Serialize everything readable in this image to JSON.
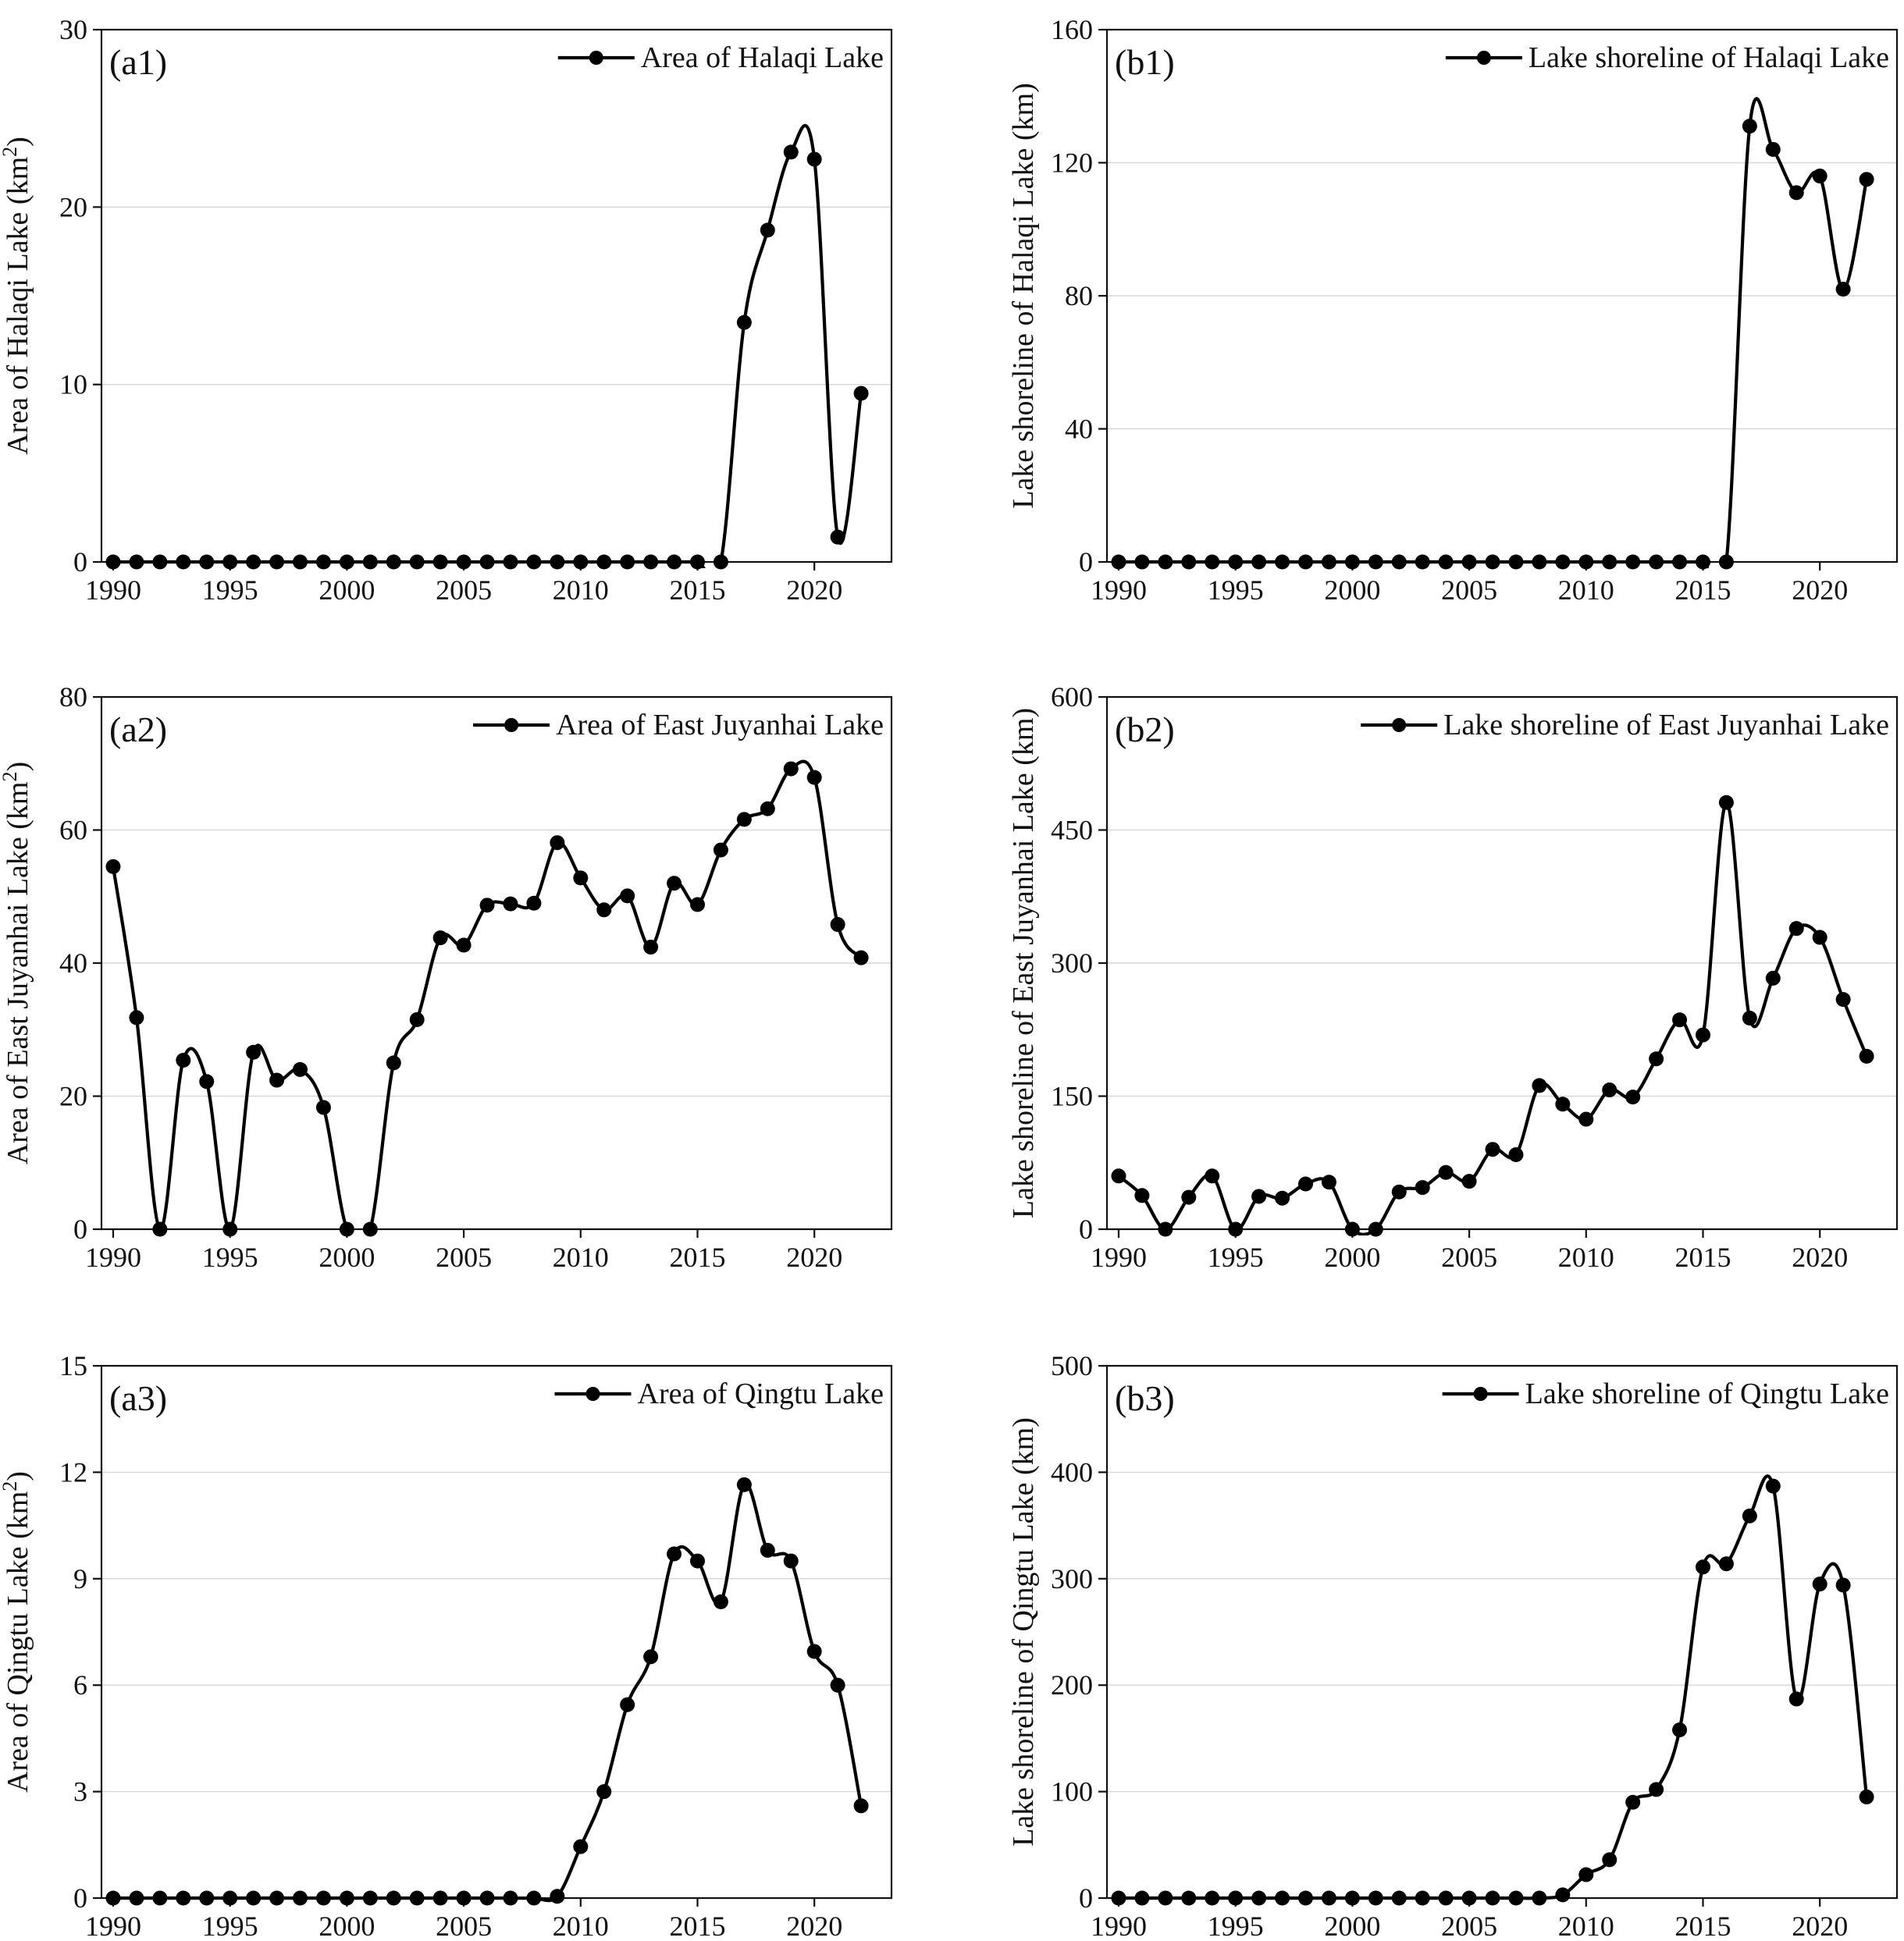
{
  "chart_data": [
    {
      "id": "a1",
      "type": "line",
      "panel_label": "(a1)",
      "ylabel": "Area of Halaqi Lake (km",
      "ylabel_sup": "2",
      "ylabel_end": ")",
      "xlabel": "",
      "ylim": [
        0,
        30
      ],
      "yticks": [
        0,
        10,
        20,
        30
      ],
      "xlim": [
        1989.5,
        2023.3
      ],
      "xticks": [
        1990,
        1995,
        2000,
        2005,
        2010,
        2015,
        2020
      ],
      "legend": "Area of Halaqi Lake",
      "color": "#000000",
      "x": [
        1990,
        1991,
        1992,
        1993,
        1994,
        1995,
        1996,
        1997,
        1998,
        1999,
        2000,
        2001,
        2002,
        2003,
        2004,
        2005,
        2006,
        2007,
        2008,
        2009,
        2010,
        2011,
        2012,
        2013,
        2014,
        2015,
        2016,
        2017,
        2018,
        2019,
        2020,
        2021,
        2022
      ],
      "y": [
        0,
        0,
        0,
        0,
        0,
        0,
        0,
        0,
        0,
        0,
        0,
        0,
        0,
        0,
        0,
        0,
        0,
        0,
        0,
        0,
        0,
        0,
        0,
        0,
        0,
        0,
        0,
        13.5,
        18.7,
        23.1,
        22.7,
        1.4,
        9.5
      ]
    },
    {
      "id": "b1",
      "type": "line",
      "panel_label": "(b1)",
      "ylabel": "Lake shoreline of Halaqi Lake (km)",
      "ylabel_sup": "",
      "ylabel_end": "",
      "xlabel": "",
      "ylim": [
        0,
        160
      ],
      "yticks": [
        0,
        40,
        80,
        120,
        160
      ],
      "xlim": [
        1989.5,
        2023.3
      ],
      "xticks": [
        1990,
        1995,
        2000,
        2005,
        2010,
        2015,
        2020
      ],
      "legend": "Lake shoreline of Halaqi Lake",
      "color": "#000000",
      "x": [
        1990,
        1991,
        1992,
        1993,
        1994,
        1995,
        1996,
        1997,
        1998,
        1999,
        2000,
        2001,
        2002,
        2003,
        2004,
        2005,
        2006,
        2007,
        2008,
        2009,
        2010,
        2011,
        2012,
        2013,
        2014,
        2015,
        2016,
        2017,
        2018,
        2019,
        2020,
        2021,
        2022
      ],
      "y": [
        0,
        0,
        0,
        0,
        0,
        0,
        0,
        0,
        0,
        0,
        0,
        0,
        0,
        0,
        0,
        0,
        0,
        0,
        0,
        0,
        0,
        0,
        0,
        0,
        0,
        0,
        0,
        131,
        124,
        111,
        116,
        82,
        115
      ]
    },
    {
      "id": "a2",
      "type": "line",
      "panel_label": "(a2)",
      "ylabel": "Area of East Juyanhai Lake (km",
      "ylabel_sup": "2",
      "ylabel_end": ")",
      "xlabel": "",
      "ylim": [
        0,
        80
      ],
      "yticks": [
        0,
        20,
        40,
        60,
        80
      ],
      "xlim": [
        1989.5,
        2023.3
      ],
      "xticks": [
        1990,
        1995,
        2000,
        2005,
        2010,
        2015,
        2020
      ],
      "legend": "Area of East Juyanhai Lake",
      "color": "#000000",
      "x": [
        1990,
        1991,
        1992,
        1993,
        1994,
        1995,
        1996,
        1997,
        1998,
        1999,
        2000,
        2001,
        2002,
        2003,
        2004,
        2005,
        2006,
        2007,
        2008,
        2009,
        2010,
        2011,
        2012,
        2013,
        2014,
        2015,
        2016,
        2017,
        2018,
        2019,
        2020,
        2021,
        2022
      ],
      "y": [
        54.5,
        31.8,
        0,
        25.4,
        22.2,
        0,
        26.6,
        22.4,
        24.0,
        18.3,
        0,
        0,
        25.0,
        31.5,
        43.8,
        42.7,
        48.7,
        48.9,
        49.0,
        58.1,
        52.8,
        48.0,
        50.1,
        42.4,
        52.0,
        48.8,
        57.0,
        61.6,
        63.2,
        69.2,
        67.9,
        45.8,
        40.8
      ]
    },
    {
      "id": "b2",
      "type": "line",
      "panel_label": "(b2)",
      "ylabel": "Lake shoreline of East Juyanhai Lake (km)",
      "ylabel_sup": "",
      "ylabel_end": "",
      "xlabel": "",
      "ylim": [
        0,
        600
      ],
      "yticks": [
        0,
        150,
        300,
        450,
        600
      ],
      "xlim": [
        1989.5,
        2023.3
      ],
      "xticks": [
        1990,
        1995,
        2000,
        2005,
        2010,
        2015,
        2020
      ],
      "legend": "Lake shoreline of East Juyanhai Lake",
      "color": "#000000",
      "x": [
        1990,
        1991,
        1992,
        1993,
        1994,
        1995,
        1996,
        1997,
        1998,
        1999,
        2000,
        2001,
        2002,
        2003,
        2004,
        2005,
        2006,
        2007,
        2008,
        2009,
        2010,
        2011,
        2012,
        2013,
        2014,
        2015,
        2016,
        2017,
        2018,
        2019,
        2020,
        2021,
        2022
      ],
      "y": [
        60,
        38,
        0,
        36,
        60,
        0,
        37,
        35,
        51,
        53,
        0,
        0,
        42,
        47,
        64,
        54,
        90,
        84,
        162,
        141,
        124,
        157,
        149,
        192,
        236,
        219,
        481,
        238,
        283,
        339,
        329,
        259,
        195
      ]
    },
    {
      "id": "a3",
      "type": "line",
      "panel_label": "(a3)",
      "ylabel": "Area of Qingtu Lake (km",
      "ylabel_sup": "2",
      "ylabel_end": ")",
      "xlabel": "",
      "ylim": [
        0,
        15
      ],
      "yticks": [
        0,
        3,
        6,
        9,
        12,
        15
      ],
      "xlim": [
        1989.5,
        2023.3
      ],
      "xticks": [
        1990,
        1995,
        2000,
        2005,
        2010,
        2015,
        2020
      ],
      "legend": "Area of Qingtu Lake",
      "color": "#000000",
      "x": [
        1990,
        1991,
        1992,
        1993,
        1994,
        1995,
        1996,
        1997,
        1998,
        1999,
        2000,
        2001,
        2002,
        2003,
        2004,
        2005,
        2006,
        2007,
        2008,
        2009,
        2010,
        2011,
        2012,
        2013,
        2014,
        2015,
        2016,
        2017,
        2018,
        2019,
        2020,
        2021,
        2022
      ],
      "y": [
        0,
        0,
        0,
        0,
        0,
        0,
        0,
        0,
        0,
        0,
        0,
        0,
        0,
        0,
        0,
        0,
        0,
        0,
        0,
        0.05,
        1.45,
        3.0,
        5.45,
        6.8,
        9.7,
        9.5,
        8.35,
        11.65,
        9.8,
        9.5,
        6.95,
        6.0,
        2.6
      ]
    },
    {
      "id": "b3",
      "type": "line",
      "panel_label": "(b3)",
      "ylabel": "Lake shoreline of Qingtu Lake (km)",
      "ylabel_sup": "",
      "ylabel_end": "",
      "xlabel": "",
      "ylim": [
        0,
        500
      ],
      "yticks": [
        0,
        100,
        200,
        300,
        400,
        500
      ],
      "xlim": [
        1989.5,
        2023.3
      ],
      "xticks": [
        1990,
        1995,
        2000,
        2005,
        2010,
        2015,
        2020
      ],
      "legend": "Lake shoreline of Qingtu Lake",
      "color": "#000000",
      "x": [
        1990,
        1991,
        1992,
        1993,
        1994,
        1995,
        1996,
        1997,
        1998,
        1999,
        2000,
        2001,
        2002,
        2003,
        2004,
        2005,
        2006,
        2007,
        2008,
        2009,
        2010,
        2011,
        2012,
        2013,
        2014,
        2015,
        2016,
        2017,
        2018,
        2019,
        2020,
        2021,
        2022
      ],
      "y": [
        0,
        0,
        0,
        0,
        0,
        0,
        0,
        0,
        0,
        0,
        0,
        0,
        0,
        0,
        0,
        0,
        0,
        0,
        0,
        3,
        22,
        36,
        90,
        102,
        158,
        311,
        314,
        359,
        387,
        187,
        295,
        294,
        95
      ]
    }
  ]
}
